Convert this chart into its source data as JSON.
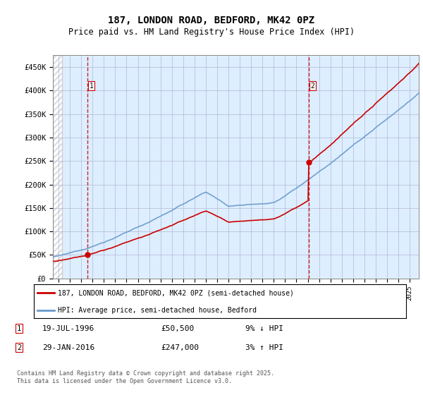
{
  "title": "187, LONDON ROAD, BEDFORD, MK42 0PZ",
  "subtitle": "Price paid vs. HM Land Registry's House Price Index (HPI)",
  "ylim": [
    0,
    475000
  ],
  "yticks": [
    0,
    50000,
    100000,
    150000,
    200000,
    250000,
    300000,
    350000,
    400000,
    450000
  ],
  "ytick_labels": [
    "£0",
    "£50K",
    "£100K",
    "£150K",
    "£200K",
    "£250K",
    "£300K",
    "£350K",
    "£400K",
    "£450K"
  ],
  "xlim_start": 1993.5,
  "xlim_end": 2025.8,
  "background_color": "#ddeeff",
  "grid_color": "#aaaacc",
  "transaction1_x": 1996.55,
  "transaction1_y": 50500,
  "transaction2_x": 2016.08,
  "transaction2_y": 247000,
  "legend_line1": "187, LONDON ROAD, BEDFORD, MK42 0PZ (semi-detached house)",
  "legend_line2": "HPI: Average price, semi-detached house, Bedford",
  "note1_label": "1",
  "note1_date": "19-JUL-1996",
  "note1_price": "£50,500",
  "note1_hpi": "9% ↓ HPI",
  "note2_label": "2",
  "note2_date": "29-JAN-2016",
  "note2_price": "£247,000",
  "note2_hpi": "3% ↑ HPI",
  "footer": "Contains HM Land Registry data © Crown copyright and database right 2025.\nThis data is licensed under the Open Government Licence v3.0.",
  "property_color": "#cc0000",
  "hpi_color": "#6699cc",
  "hatch_end": 1994.3
}
